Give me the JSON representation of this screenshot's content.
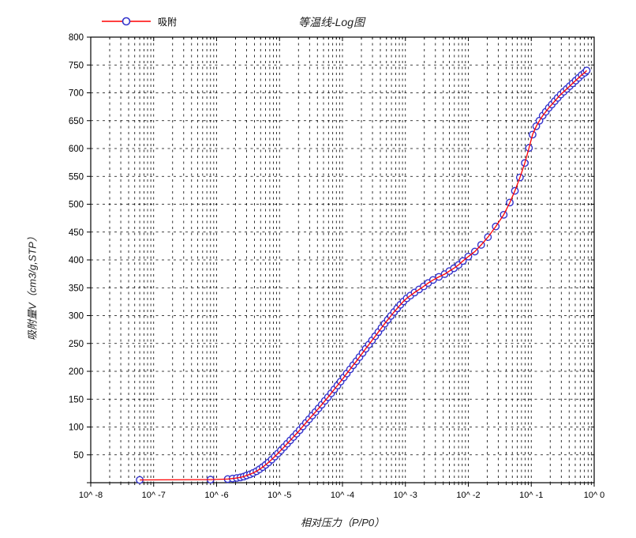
{
  "title": "等温线-Log图",
  "legend": {
    "label": "吸附"
  },
  "axis_titles": {
    "x": "相对压力（P/P0）",
    "y": "吸附量V（cm3/g,STP）"
  },
  "colors": {
    "line": "#ff0000",
    "marker_stroke": "#3333cc",
    "marker_fill": "#ffffff",
    "grid": "#000000",
    "frame": "#000000",
    "tick_text": "#000000",
    "background": "#ffffff"
  },
  "chart_data": {
    "type": "line",
    "title": "等温线-Log图",
    "xlabel": "相对压力（P/P0）",
    "ylabel": "吸附量V（cm3/g,STP）",
    "x_scale": "log",
    "xlim": [
      1e-08,
      1
    ],
    "ylim": [
      0,
      800
    ],
    "x_tick_labels": [
      "10^ -8",
      "10^ -7",
      "10^ -6",
      "10^ -5",
      "10^ -4",
      "10^ -3",
      "10^ -2",
      "10^ -1",
      "10^ 0"
    ],
    "x_tick_decades": [
      -8,
      -7,
      -6,
      -5,
      -4,
      -3,
      -2,
      -1,
      0
    ],
    "y_ticks_labeled": [
      50,
      100,
      150,
      200,
      250,
      300,
      350,
      400,
      450,
      500,
      550,
      600,
      650,
      700,
      750,
      800
    ],
    "y_grid_step": 50,
    "grid": "dashed, horizontal every 50, vertical at all log minor and major ticks",
    "legend_position": "top-left",
    "series": [
      {
        "name": "吸附",
        "line_color": "#ff0000",
        "marker": "open-circle",
        "marker_color": "#3333cc",
        "points": [
          [
            6e-08,
            5
          ],
          [
            8e-07,
            5.5
          ],
          [
            1.5e-06,
            6.5
          ],
          [
            1.8e-06,
            7.5
          ],
          [
            2.1e-06,
            8.5
          ],
          [
            2.4e-06,
            9.5
          ],
          [
            2.7e-06,
            11
          ],
          [
            3e-06,
            13
          ],
          [
            3.4e-06,
            15
          ],
          [
            3.8e-06,
            17.5
          ],
          [
            4.3e-06,
            20.5
          ],
          [
            4.8e-06,
            24
          ],
          [
            5.4e-06,
            28
          ],
          [
            6e-06,
            32
          ],
          [
            6.7e-06,
            36.5
          ],
          [
            7.5e-06,
            41.5
          ],
          [
            8.4e-06,
            47
          ],
          [
            9.4e-06,
            52.5
          ],
          [
            1.05e-05,
            58
          ],
          [
            1.18e-05,
            64
          ],
          [
            1.32e-05,
            70
          ],
          [
            1.48e-05,
            76
          ],
          [
            1.66e-05,
            82
          ],
          [
            1.86e-05,
            88
          ],
          [
            2.09e-05,
            94.5
          ],
          [
            2.34e-05,
            101
          ],
          [
            2.63e-05,
            107.5
          ],
          [
            2.95e-05,
            114
          ],
          [
            3.31e-05,
            120.5
          ],
          [
            3.72e-05,
            127
          ],
          [
            4.17e-05,
            133.5
          ],
          [
            4.68e-05,
            140
          ],
          [
            5.25e-05,
            147
          ],
          [
            5.89e-05,
            153.5
          ],
          [
            6.61e-05,
            160.5
          ],
          [
            7.41e-05,
            167.5
          ],
          [
            8.32e-05,
            174.5
          ],
          [
            9.33e-05,
            181.5
          ],
          [
            0.000105,
            189
          ],
          [
            0.000117,
            196
          ],
          [
            0.000132,
            203.5
          ],
          [
            0.000148,
            211
          ],
          [
            0.000166,
            218
          ],
          [
            0.000186,
            225.5
          ],
          [
            0.000209,
            233
          ],
          [
            0.000234,
            240.5
          ],
          [
            0.000263,
            248
          ],
          [
            0.000295,
            255.5
          ],
          [
            0.000331,
            263
          ],
          [
            0.000372,
            270.5
          ],
          [
            0.000417,
            278
          ],
          [
            0.000468,
            285.5
          ],
          [
            0.000525,
            292.5
          ],
          [
            0.000589,
            299.5
          ],
          [
            0.000661,
            306.5
          ],
          [
            0.000741,
            313
          ],
          [
            0.000832,
            319.5
          ],
          [
            0.000933,
            325.5
          ],
          [
            0.00105,
            331
          ],
          [
            0.0012,
            336
          ],
          [
            0.0014,
            341.5
          ],
          [
            0.00165,
            347
          ],
          [
            0.00195,
            352.5
          ],
          [
            0.0023,
            358.5
          ],
          [
            0.00275,
            364
          ],
          [
            0.0034,
            369.5
          ],
          [
            0.0042,
            374.5
          ],
          [
            0.005,
            380
          ],
          [
            0.0059,
            385
          ],
          [
            0.007,
            391
          ],
          [
            0.0082,
            398
          ],
          [
            0.01,
            406
          ],
          [
            0.0127,
            415
          ],
          [
            0.016,
            427
          ],
          [
            0.0205,
            441
          ],
          [
            0.0273,
            460
          ],
          [
            0.0365,
            481
          ],
          [
            0.0456,
            503
          ],
          [
            0.055,
            524
          ],
          [
            0.066,
            548
          ],
          [
            0.079,
            574
          ],
          [
            0.092,
            601
          ],
          [
            0.105,
            625
          ],
          [
            0.12,
            640
          ],
          [
            0.135,
            650
          ],
          [
            0.152,
            659
          ],
          [
            0.17,
            666
          ],
          [
            0.19,
            673
          ],
          [
            0.212,
            679
          ],
          [
            0.236,
            685
          ],
          [
            0.263,
            691
          ],
          [
            0.294,
            697
          ],
          [
            0.328,
            702
          ],
          [
            0.366,
            707
          ],
          [
            0.408,
            712
          ],
          [
            0.455,
            717
          ],
          [
            0.508,
            722
          ],
          [
            0.567,
            727
          ],
          [
            0.632,
            732
          ],
          [
            0.705,
            736
          ],
          [
            0.76,
            740
          ]
        ]
      }
    ]
  }
}
